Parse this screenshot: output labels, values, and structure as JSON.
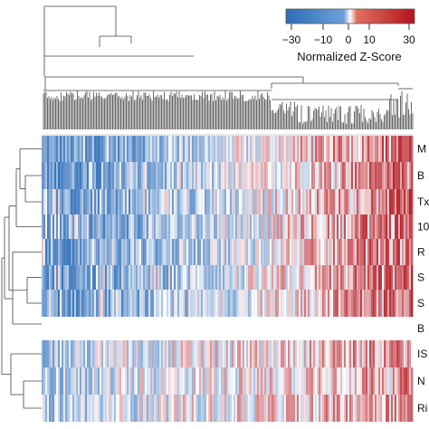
{
  "chart_data": {
    "type": "heatmap",
    "title": "",
    "color_scale": {
      "title": "Normalized Z-Score",
      "ticks": [
        -30,
        -10,
        0,
        10,
        30
      ],
      "tick_labels": [
        "−30",
        "−10",
        "0",
        "10",
        "30"
      ],
      "negative_color": "#2c6cb8",
      "zero_color": "#ffffff",
      "positive_color": "#b2121b"
    },
    "row_labels": [
      "M",
      "B",
      "Tx",
      "10",
      "R",
      "S",
      "S",
      "B",
      "IS",
      "N",
      "Ri"
    ],
    "dendrograms": {
      "rows": true,
      "columns": true
    },
    "row_groups": [
      {
        "rows": [
          0,
          1,
          2,
          3,
          4,
          5,
          6
        ],
        "profile": [
          -12,
          -11,
          -10,
          -8,
          -6,
          -4,
          -2,
          1,
          4,
          7,
          10,
          12
        ]
      },
      {
        "rows": [
          7
        ],
        "profile": [
          0,
          0,
          0,
          0,
          0,
          0,
          0,
          0,
          0,
          0,
          0,
          0
        ]
      },
      {
        "rows": [
          8,
          9,
          10
        ],
        "profile": [
          -6,
          -5,
          -3,
          -2,
          -1,
          0,
          1,
          2,
          4,
          5,
          7,
          8
        ]
      }
    ]
  }
}
